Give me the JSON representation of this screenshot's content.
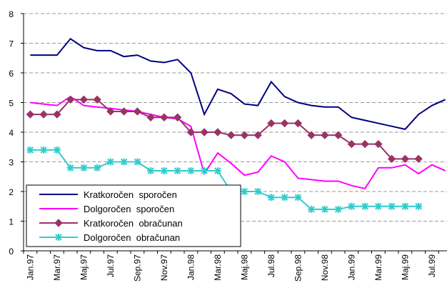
{
  "chart_data": {
    "type": "line",
    "categories": [
      "Jan.97",
      null,
      "Mar.97",
      null,
      "Maj.97",
      null,
      "Jul.97",
      null,
      "Sep.97",
      null,
      "Nov.97",
      null,
      "Jan.98",
      null,
      "Mar.98",
      null,
      "Maj.98",
      null,
      "Jul.98",
      null,
      "Sep.98",
      null,
      "Nov.98",
      null,
      "Jan.99",
      null,
      "Mar.99",
      null,
      "Maj.99",
      null,
      "Jul.99",
      null
    ],
    "series": [
      {
        "name": "Kratkoročen  sporočen",
        "color": "#000080",
        "marker": null,
        "values": [
          6.6,
          6.6,
          6.6,
          7.15,
          6.85,
          6.75,
          6.75,
          6.55,
          6.6,
          6.4,
          6.35,
          6.45,
          6.0,
          4.6,
          5.45,
          5.3,
          4.95,
          4.9,
          5.7,
          5.2,
          5.0,
          4.9,
          4.85,
          4.85,
          4.5,
          4.4,
          4.3,
          4.2,
          4.1,
          4.6,
          4.9,
          5.1
        ]
      },
      {
        "name": "Dolgoročen  sporočen",
        "color": "#ff00ff",
        "marker": null,
        "values": [
          5.0,
          4.95,
          4.9,
          5.2,
          4.9,
          4.85,
          4.8,
          4.75,
          4.7,
          4.6,
          4.5,
          4.45,
          4.2,
          2.6,
          3.3,
          2.95,
          2.55,
          2.65,
          3.2,
          3.0,
          2.45,
          2.4,
          2.35,
          2.35,
          2.2,
          2.1,
          2.8,
          2.8,
          2.9,
          2.6,
          2.9,
          2.7
        ]
      },
      {
        "name": "Kratkoročen  obračunan",
        "color": "#993366",
        "marker": "diamond",
        "values": [
          4.6,
          4.6,
          4.6,
          5.1,
          5.1,
          5.1,
          4.7,
          4.7,
          4.7,
          4.5,
          4.5,
          4.5,
          4.0,
          4.0,
          4.0,
          3.9,
          3.9,
          3.9,
          4.3,
          4.3,
          4.3,
          3.9,
          3.9,
          3.9,
          3.6,
          3.6,
          3.6,
          3.1,
          3.1,
          3.1,
          null,
          null
        ]
      },
      {
        "name": "Dolgoročen  obračunan",
        "color": "#33cccc",
        "marker": "star",
        "values": [
          3.4,
          3.4,
          3.4,
          2.8,
          2.8,
          2.8,
          3.0,
          3.0,
          3.0,
          2.7,
          2.7,
          2.7,
          2.7,
          2.7,
          2.7,
          2.0,
          2.0,
          2.0,
          1.8,
          1.8,
          1.8,
          1.4,
          1.4,
          1.4,
          1.5,
          1.5,
          1.5,
          1.5,
          1.5,
          1.5,
          null,
          null
        ]
      }
    ],
    "ylim": [
      0,
      8
    ],
    "yticks": [
      0,
      1,
      2,
      3,
      4,
      5,
      6,
      7,
      8
    ],
    "grid": true,
    "legend": "lower left"
  }
}
